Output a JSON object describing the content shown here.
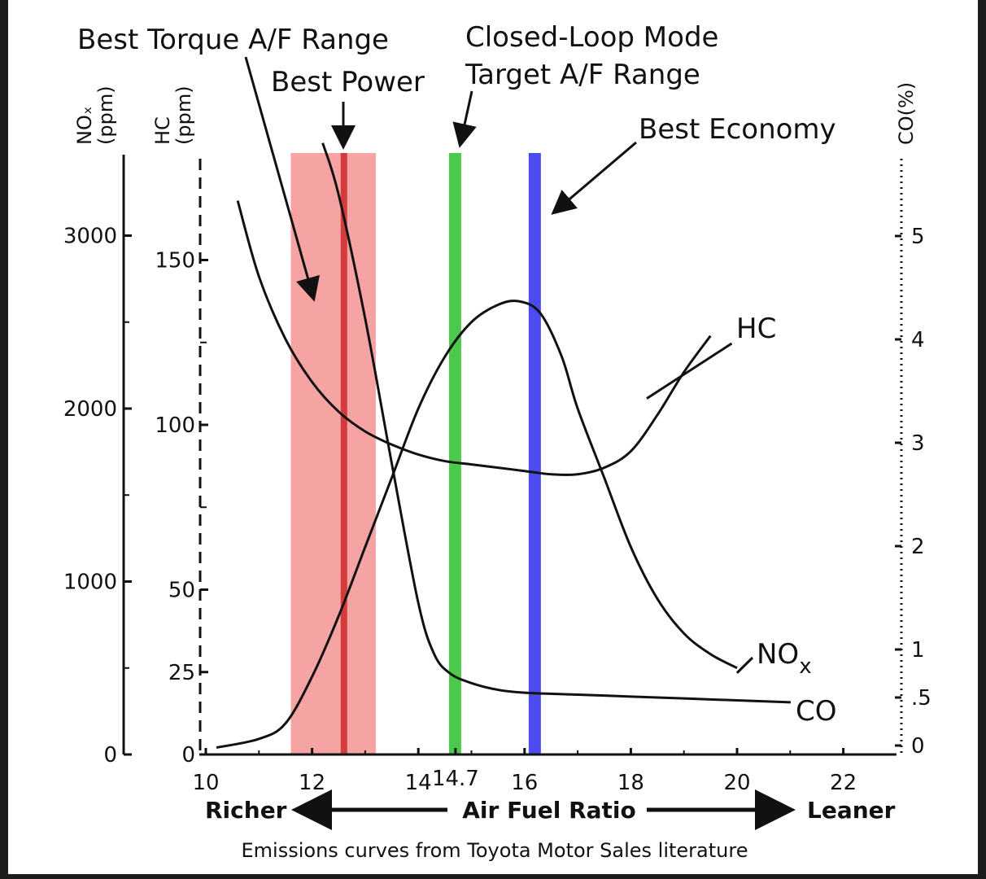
{
  "chart_data": {
    "type": "line",
    "title": "",
    "caption": "Emissions curves from Toyota Motor Sales literature",
    "xlabel": "Air Fuel Ratio",
    "x_left_label": "Richer",
    "x_right_label": "Leaner",
    "xlim": [
      10,
      23
    ],
    "x_ticks": [
      "10",
      "12",
      "14",
      "14.7",
      "16",
      "18",
      "20",
      "22"
    ],
    "axes": {
      "nox": {
        "label_main": "NOₓ",
        "label_unit": "(ppm)",
        "ticks": [
          "0",
          "1000",
          "2000",
          "3000"
        ]
      },
      "hc": {
        "label_main": "HC",
        "label_unit": "(ppm)",
        "ticks": [
          "0",
          "25",
          "50",
          "100",
          "150"
        ]
      },
      "co": {
        "label": "CO(%)",
        "ticks": [
          "0",
          ".5",
          "1",
          "2",
          "3",
          "4",
          "5"
        ]
      }
    },
    "bands": [
      {
        "label": "Best Torque A/F Range",
        "from": 11.6,
        "to": 13.2,
        "color": "#f5a3a3"
      },
      {
        "label": "Best Power",
        "at": 12.6,
        "color": "#d33b3b"
      },
      {
        "label_line1": "Closed-Loop Mode",
        "label_line2": "Target A/F Range",
        "at": 14.7,
        "color": "#4cc94c"
      },
      {
        "label": "Best Economy",
        "at": 16.2,
        "color": "#4b4bf0"
      }
    ],
    "series": [
      {
        "name": "HC",
        "axis": "hc (ppm)",
        "x": [
          10.6,
          11.0,
          11.5,
          12.0,
          12.5,
          13.0,
          13.5,
          14.0,
          14.5,
          15.0,
          15.5,
          16.0,
          16.5,
          17.0,
          17.5,
          18.0,
          18.5,
          19.0,
          19.5
        ],
        "y": [
          168,
          145,
          126,
          113,
          104,
          98,
          94,
          91,
          89,
          88,
          87,
          86,
          85,
          85,
          87,
          92,
          103,
          116,
          127
        ]
      },
      {
        "name": "NO",
        "sub": "x",
        "axis": "nox (ppm)",
        "x": [
          10.2,
          11.0,
          11.5,
          12.0,
          12.5,
          13.0,
          13.5,
          14.0,
          14.5,
          15.0,
          15.5,
          15.9,
          16.3,
          16.7,
          17.0,
          17.5,
          18.0,
          18.5,
          19.0,
          19.5,
          20.0
        ],
        "y": [
          40,
          90,
          180,
          450,
          800,
          1200,
          1600,
          2000,
          2300,
          2500,
          2600,
          2620,
          2550,
          2300,
          2000,
          1600,
          1200,
          900,
          700,
          580,
          500
        ]
      },
      {
        "name": "CO",
        "axis": "co (%)",
        "x": [
          12.2,
          12.5,
          13.0,
          13.5,
          14.0,
          14.3,
          14.6,
          15.0,
          15.5,
          16.0,
          17.0,
          18.0,
          19.0,
          20.0,
          21.0
        ],
        "y": [
          5.9,
          5.4,
          4.2,
          2.8,
          1.45,
          0.95,
          0.75,
          0.65,
          0.58,
          0.55,
          0.53,
          0.51,
          0.49,
          0.47,
          0.45
        ]
      }
    ]
  }
}
